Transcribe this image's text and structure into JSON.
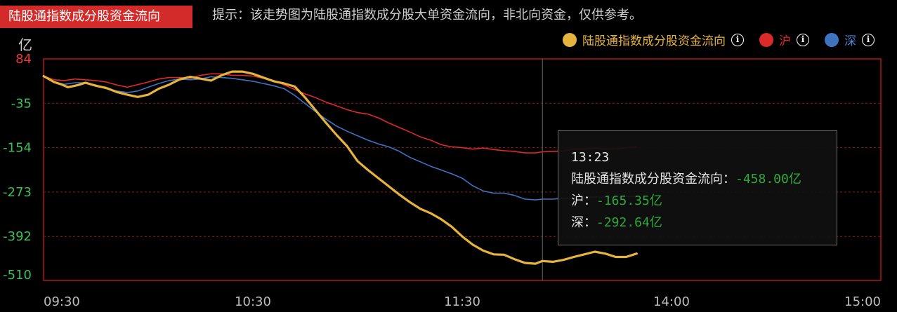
{
  "header": {
    "title": "陆股通指数成分股资金流向",
    "hint": "提示：该走势图为陆股通指数成分股大单资金流向，非北向资金，仅供参考。"
  },
  "legend": {
    "items": [
      {
        "label": "陆股通指数成分股资金流向",
        "color": "#e6b43c",
        "label_color": "#e6b43c"
      },
      {
        "label": "沪",
        "color": "#dc2a2a",
        "label_color": "#dc2a2a"
      },
      {
        "label": "深",
        "color": "#3f73c1",
        "label_color": "#4f86d6"
      }
    ],
    "info_glyph": "i"
  },
  "tooltip": {
    "time": "13:23",
    "rows": [
      {
        "label": "陆股通指数成分股资金流向：",
        "value": "-458.00亿"
      },
      {
        "label": "沪：",
        "value": "-165.35亿"
      },
      {
        "label": "深：",
        "value": "-292.64亿"
      }
    ]
  },
  "chart_data": {
    "type": "line",
    "unit": "亿",
    "yticks": [
      84,
      -35,
      -154,
      -273,
      -392,
      -510
    ],
    "ylim": [
      -510,
      84
    ],
    "xticks": [
      "09:30",
      "10:30",
      "11:30",
      "14:00",
      "15:00"
    ],
    "x_note": "trading minutes from 09:30; 11:30 and 13:00 coincide",
    "crosshair_x": 143,
    "grid": true,
    "series": [
      {
        "name": "陆股通指数成分股资金流向",
        "color": "#e6b43c",
        "points": [
          [
            0,
            38
          ],
          [
            3,
            22
          ],
          [
            5,
            16
          ],
          [
            7,
            8
          ],
          [
            10,
            14
          ],
          [
            12,
            20
          ],
          [
            15,
            12
          ],
          [
            18,
            6
          ],
          [
            21,
            -5
          ],
          [
            24,
            -12
          ],
          [
            27,
            -18
          ],
          [
            30,
            -12
          ],
          [
            33,
            4
          ],
          [
            36,
            15
          ],
          [
            39,
            29
          ],
          [
            42,
            36
          ],
          [
            45,
            31
          ],
          [
            48,
            26
          ],
          [
            51,
            40
          ],
          [
            54,
            50
          ],
          [
            57,
            50
          ],
          [
            60,
            44
          ],
          [
            63,
            34
          ],
          [
            66,
            24
          ],
          [
            69,
            18
          ],
          [
            72,
            10
          ],
          [
            75,
            -20
          ],
          [
            78,
            -54
          ],
          [
            81,
            -88
          ],
          [
            84,
            -120
          ],
          [
            87,
            -150
          ],
          [
            90,
            -190
          ],
          [
            93,
            -214
          ],
          [
            96,
            -236
          ],
          [
            99,
            -258
          ],
          [
            102,
            -280
          ],
          [
            105,
            -300
          ],
          [
            108,
            -318
          ],
          [
            111,
            -330
          ],
          [
            114,
            -346
          ],
          [
            117,
            -366
          ],
          [
            120,
            -392
          ],
          [
            123,
            -414
          ],
          [
            126,
            -430
          ],
          [
            129,
            -440
          ],
          [
            132,
            -441
          ],
          [
            135,
            -453
          ],
          [
            138,
            -463
          ],
          [
            141,
            -465
          ],
          [
            143,
            -458
          ],
          [
            146,
            -460
          ],
          [
            149,
            -455
          ],
          [
            152,
            -447
          ],
          [
            155,
            -440
          ],
          [
            158,
            -433
          ],
          [
            161,
            -438
          ],
          [
            164,
            -447
          ],
          [
            167,
            -447
          ],
          [
            170,
            -438
          ]
        ]
      },
      {
        "name": "沪",
        "color": "#dc2a2a",
        "points": [
          [
            0,
            38
          ],
          [
            3,
            28
          ],
          [
            6,
            26
          ],
          [
            9,
            30
          ],
          [
            12,
            28
          ],
          [
            15,
            26
          ],
          [
            18,
            22
          ],
          [
            21,
            14
          ],
          [
            24,
            8
          ],
          [
            27,
            15
          ],
          [
            30,
            22
          ],
          [
            33,
            30
          ],
          [
            36,
            34
          ],
          [
            39,
            34
          ],
          [
            42,
            32
          ],
          [
            45,
            40
          ],
          [
            48,
            44
          ],
          [
            51,
            44
          ],
          [
            54,
            40
          ],
          [
            57,
            40
          ],
          [
            60,
            38
          ],
          [
            63,
            32
          ],
          [
            66,
            26
          ],
          [
            69,
            14
          ],
          [
            72,
            2
          ],
          [
            75,
            -10
          ],
          [
            78,
            -20
          ],
          [
            81,
            -32
          ],
          [
            84,
            -42
          ],
          [
            87,
            -52
          ],
          [
            90,
            -60
          ],
          [
            93,
            -64
          ],
          [
            96,
            -74
          ],
          [
            99,
            -88
          ],
          [
            102,
            -100
          ],
          [
            105,
            -112
          ],
          [
            108,
            -125
          ],
          [
            111,
            -134
          ],
          [
            114,
            -146
          ],
          [
            117,
            -152
          ],
          [
            120,
            -154
          ],
          [
            123,
            -158
          ],
          [
            126,
            -155
          ],
          [
            129,
            -159
          ],
          [
            132,
            -162
          ],
          [
            135,
            -164
          ],
          [
            138,
            -168
          ],
          [
            141,
            -168
          ],
          [
            143,
            -165
          ],
          [
            146,
            -164
          ],
          [
            149,
            -163
          ],
          [
            152,
            -158
          ],
          [
            155,
            -158
          ],
          [
            158,
            -155
          ],
          [
            161,
            -158
          ],
          [
            164,
            -157
          ],
          [
            167,
            -154
          ],
          [
            170,
            -152
          ]
        ]
      },
      {
        "name": "深",
        "color": "#3f73c1",
        "points": [
          [
            0,
            38
          ],
          [
            3,
            22
          ],
          [
            6,
            16
          ],
          [
            9,
            20
          ],
          [
            12,
            20
          ],
          [
            15,
            14
          ],
          [
            18,
            4
          ],
          [
            21,
            -2
          ],
          [
            24,
            -6
          ],
          [
            27,
            -2
          ],
          [
            30,
            8
          ],
          [
            33,
            18
          ],
          [
            36,
            26
          ],
          [
            39,
            30
          ],
          [
            42,
            28
          ],
          [
            45,
            30
          ],
          [
            48,
            36
          ],
          [
            51,
            34
          ],
          [
            54,
            32
          ],
          [
            57,
            28
          ],
          [
            60,
            24
          ],
          [
            63,
            18
          ],
          [
            66,
            12
          ],
          [
            69,
            4
          ],
          [
            72,
            -14
          ],
          [
            75,
            -36
          ],
          [
            78,
            -58
          ],
          [
            81,
            -78
          ],
          [
            84,
            -96
          ],
          [
            87,
            -110
          ],
          [
            90,
            -122
          ],
          [
            93,
            -134
          ],
          [
            96,
            -144
          ],
          [
            99,
            -152
          ],
          [
            102,
            -164
          ],
          [
            105,
            -180
          ],
          [
            108,
            -192
          ],
          [
            111,
            -204
          ],
          [
            114,
            -214
          ],
          [
            117,
            -224
          ],
          [
            120,
            -236
          ],
          [
            123,
            -256
          ],
          [
            126,
            -270
          ],
          [
            129,
            -276
          ],
          [
            132,
            -276
          ],
          [
            135,
            -282
          ],
          [
            138,
            -292
          ],
          [
            141,
            -294
          ],
          [
            143,
            -292
          ],
          [
            146,
            -292
          ],
          [
            149,
            -290
          ],
          [
            152,
            -288
          ],
          [
            155,
            -288
          ],
          [
            158,
            -286
          ],
          [
            161,
            -287
          ],
          [
            164,
            -287
          ],
          [
            167,
            -285
          ],
          [
            170,
            -285
          ]
        ]
      }
    ]
  }
}
